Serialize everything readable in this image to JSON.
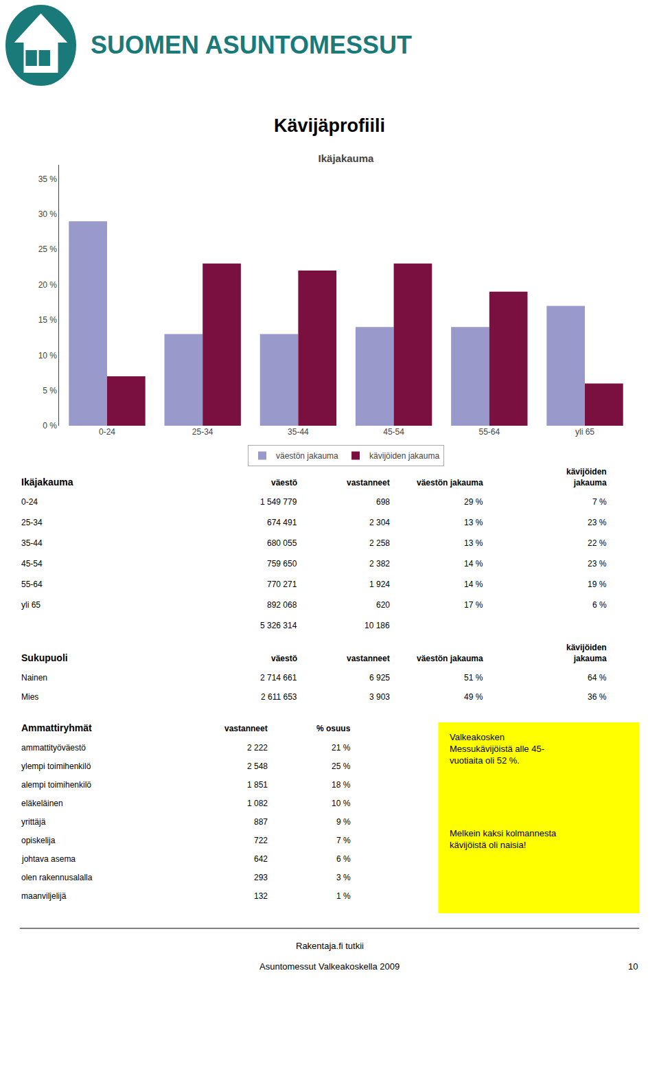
{
  "header": {
    "text": "SUOMEN ASUNTOMESSUT",
    "color": "#1a7a7a"
  },
  "title": "Kävijäprofiili",
  "chart_data": {
    "type": "bar",
    "title": "Ikäjakauma",
    "categories": [
      "0-24",
      "25-34",
      "35-44",
      "45-54",
      "55-64",
      "yli 65"
    ],
    "series": [
      {
        "name": "väestön jakauma",
        "color": "#9999cc",
        "values": [
          29,
          13,
          13,
          14,
          14,
          17
        ]
      },
      {
        "name": "kävijöiden jakauma",
        "color": "#7a1040",
        "values": [
          7,
          23,
          22,
          23,
          19,
          6
        ]
      }
    ],
    "ylim": [
      0,
      37
    ],
    "yticks": [
      {
        "value": 0,
        "label": "0 %"
      },
      {
        "value": 5,
        "label": "5 %"
      },
      {
        "value": 10,
        "label": "10 %"
      },
      {
        "value": 15,
        "label": "15 %"
      },
      {
        "value": 20,
        "label": "20 %"
      },
      {
        "value": 25,
        "label": "25 %"
      },
      {
        "value": 30,
        "label": "30 %"
      },
      {
        "value": 35,
        "label": "35 %"
      }
    ],
    "grid": true,
    "legend": "bottom"
  },
  "tables": [
    {
      "header": [
        "Ikäjakauma",
        "väestö",
        "vastanneet",
        "väestön jakauma",
        "kävijöiden\njakauma"
      ],
      "rows": [
        [
          "0-24",
          "1 549 779",
          "698",
          "29 %",
          "7 %"
        ],
        [
          "25-34",
          "674 491",
          "2 304",
          "13 %",
          "23 %"
        ],
        [
          "35-44",
          "680 055",
          "2 258",
          "13 %",
          "22 %"
        ],
        [
          "45-54",
          "759 650",
          "2 382",
          "14 %",
          "23 %"
        ],
        [
          "55-64",
          "770 271",
          "1 924",
          "14 %",
          "19 %"
        ],
        [
          "yli 65",
          "892 068",
          "620",
          "17 %",
          "6 %"
        ],
        [
          null,
          "5 326 314",
          "10 186",
          null,
          null
        ]
      ]
    },
    {
      "header": [
        "Sukupuoli",
        "väestö",
        "vastanneet",
        "väestön jakauma",
        "kävijöiden\njakauma"
      ],
      "rows": [
        [
          "Nainen",
          "2 714 661",
          "6 925",
          "51 %",
          "64 %"
        ],
        [
          "Mies",
          "2 611 653",
          "3 903",
          "49 %",
          "36 %"
        ]
      ]
    },
    {
      "header": [
        "Ammattiryhmät",
        "vastanneet",
        "% osuus"
      ],
      "rows": [
        [
          "ammattityöväestö",
          "2 222",
          "21 %"
        ],
        [
          "ylempi toimihenkilö",
          "2 548",
          "25 %"
        ],
        [
          "alempi toimihenkilö",
          "1 851",
          "18 %"
        ],
        [
          "eläkeläinen",
          "1 082",
          "10 %"
        ],
        [
          "yrittäjä",
          "887",
          "9 %"
        ],
        [
          "opiskelija",
          "722",
          "7 %"
        ],
        [
          "johtava asema",
          "642",
          "6 %"
        ],
        [
          "olen rakennusalalla",
          "293",
          "3 %"
        ],
        [
          "maanviljelijä",
          "132",
          "1 %"
        ]
      ]
    }
  ],
  "notes": {
    "color": "#FFFF00",
    "texts": [
      "Valkeakosken\nMessukävijöistä alle 45-\nvuotiaita oli 52 %.",
      "Melkein kaksi kolmannesta\nkävijöistä oli naisia!"
    ]
  },
  "footer": {
    "lines": [
      "Rakentaja.fi tutkii",
      "Asuntomessut Valkeakoskella 2009"
    ],
    "page": "10"
  }
}
